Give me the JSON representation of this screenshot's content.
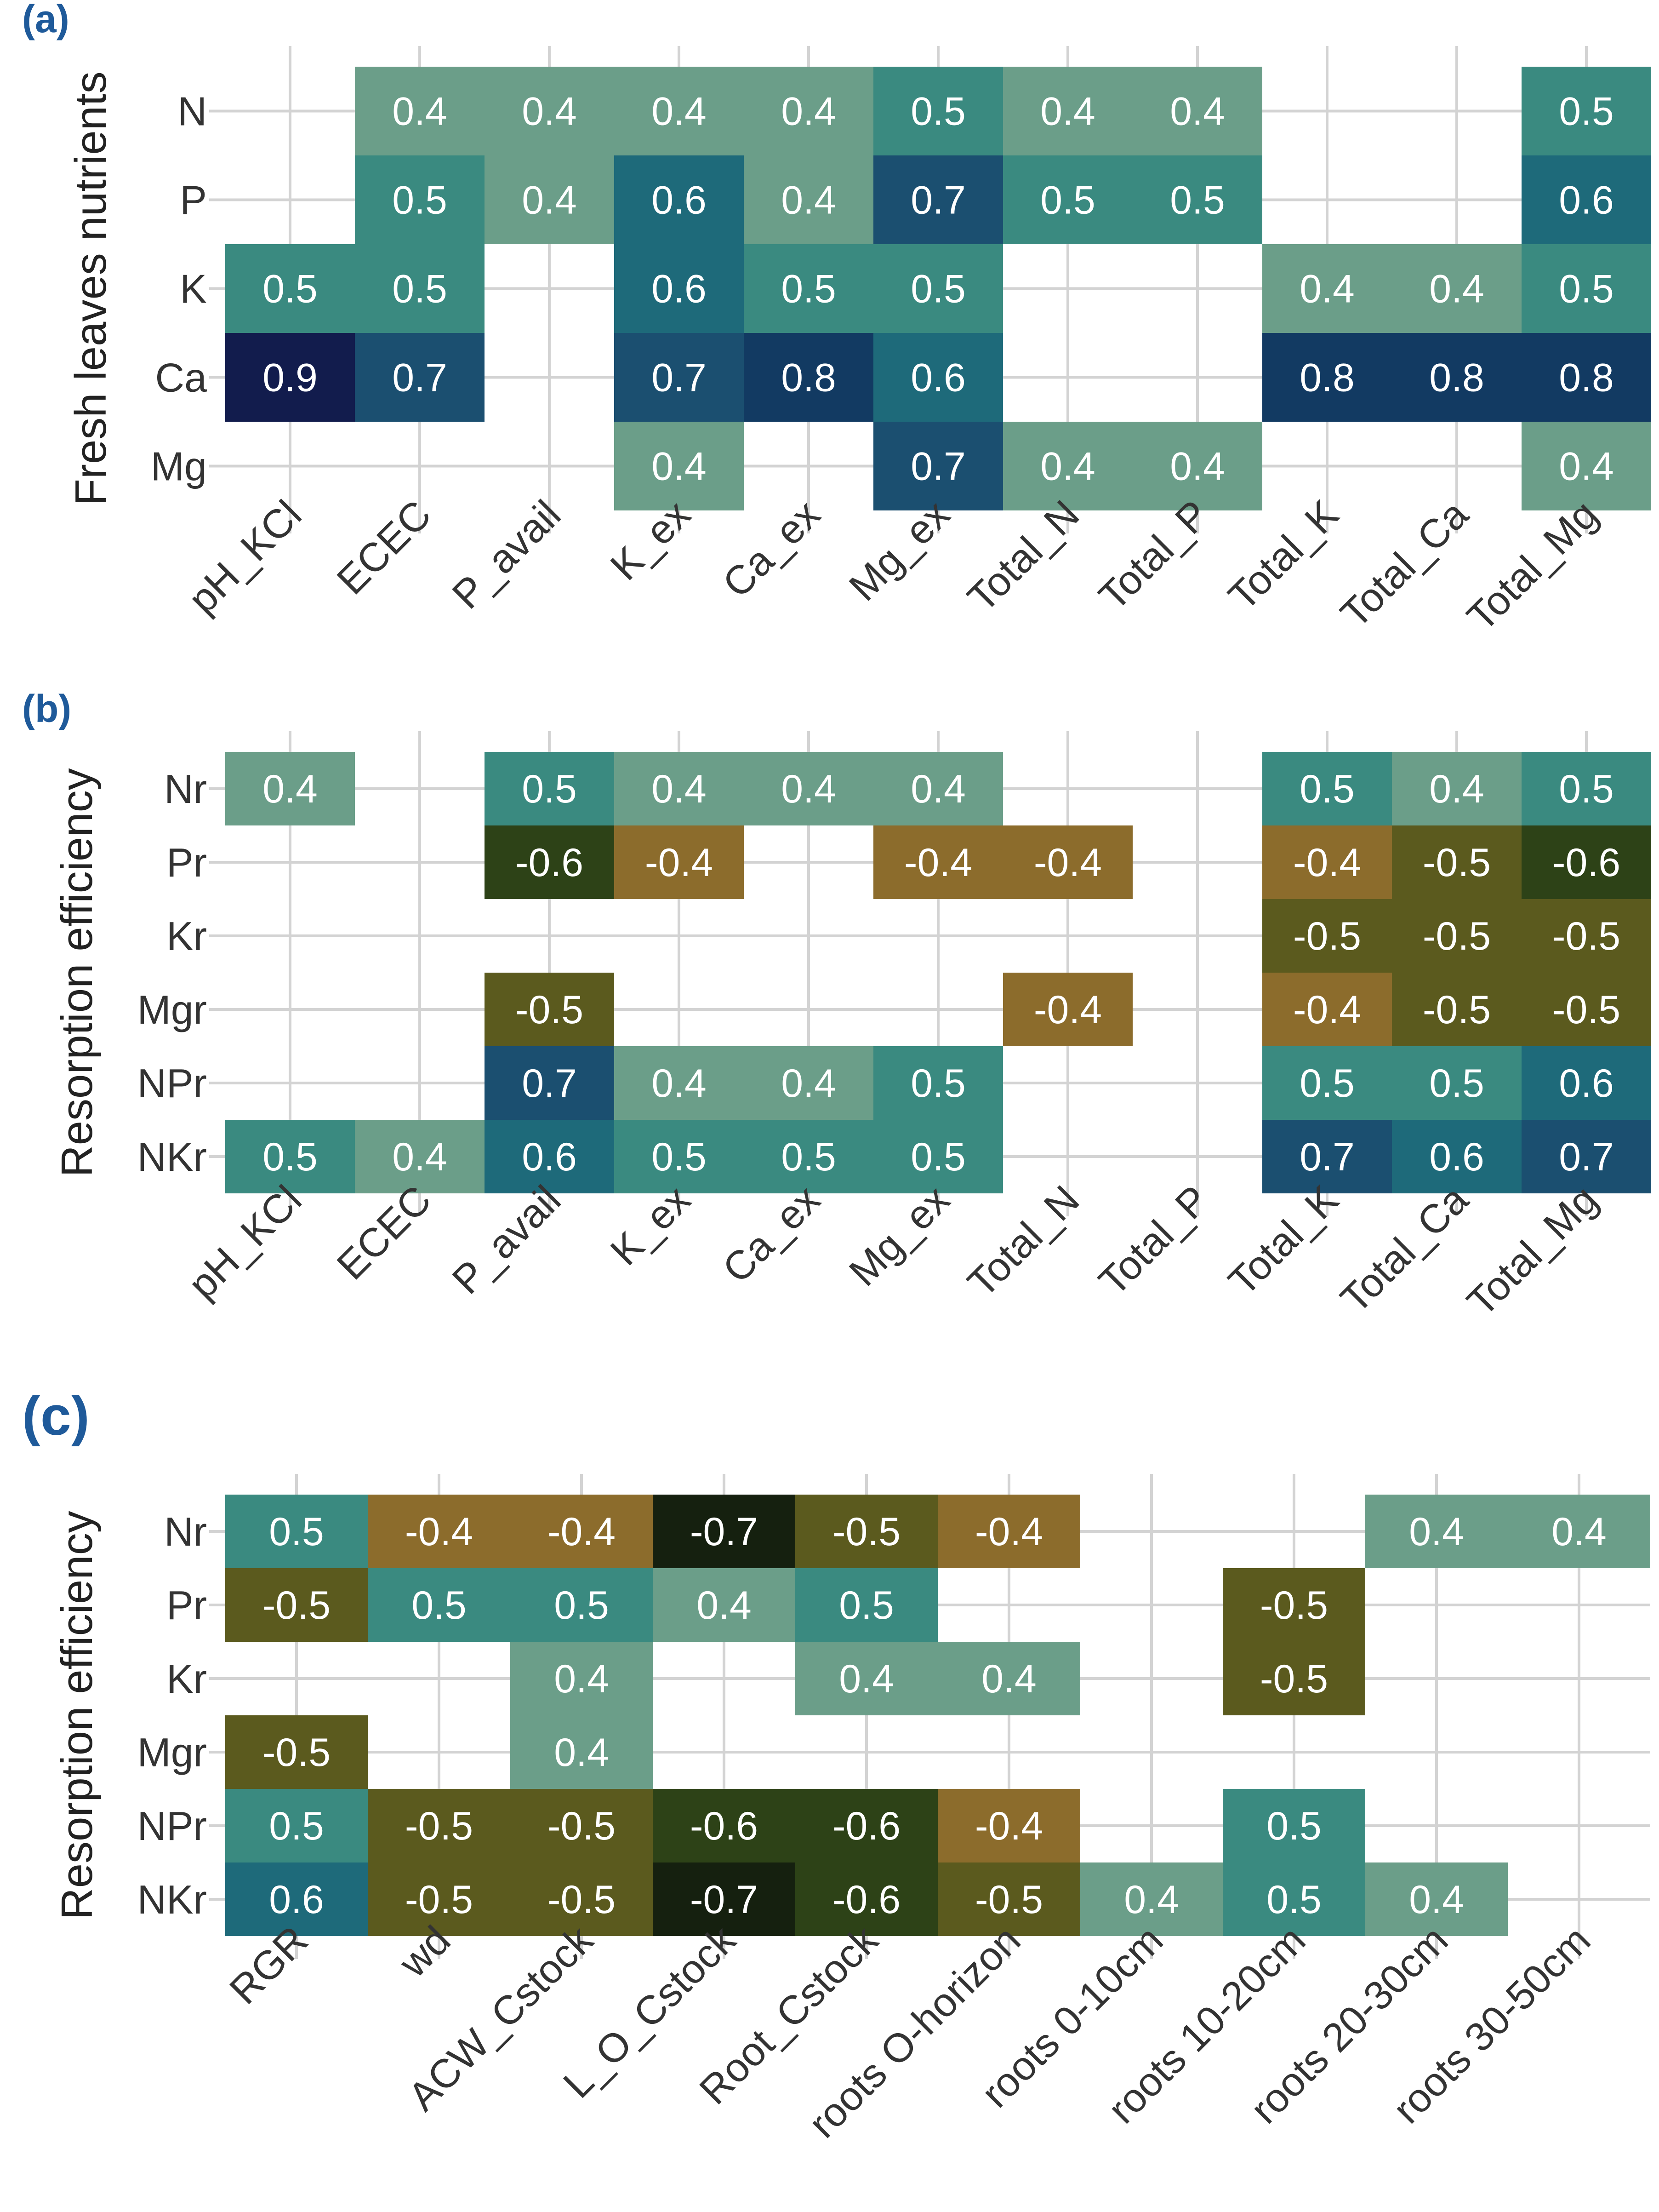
{
  "colors": {
    "pos_0.4": "#6b9e89",
    "pos_0.5": "#3a8a80",
    "pos_0.6": "#1e6a7a",
    "pos_0.7": "#1b4f70",
    "pos_0.8": "#123a62",
    "pos_0.9": "#121c4d",
    "neg_0.4": "#8c6c2c",
    "neg_0.5": "#5b5a1e",
    "neg_0.6": "#2d4217",
    "neg_0.7": "#15200f",
    "grid": "#d3d3d3",
    "panel_label": "#1f5a9a"
  },
  "chart_data": [
    {
      "type": "heatmap",
      "panel": "(a)",
      "ylabel": "Fresh leaves nutrients",
      "rows": [
        "N",
        "P",
        "K",
        "Ca",
        "Mg"
      ],
      "columns": [
        "pH_KCl",
        "ECEC",
        "P_avail",
        "K_ex",
        "Ca_ex",
        "Mg_ex",
        "Total_N",
        "Total_P",
        "Total_K",
        "Total_Ca",
        "Total_Mg"
      ],
      "values": [
        [
          null,
          0.4,
          0.4,
          0.4,
          0.4,
          0.5,
          0.4,
          0.4,
          null,
          null,
          0.5
        ],
        [
          null,
          0.5,
          0.4,
          0.6,
          0.4,
          0.7,
          0.5,
          0.5,
          null,
          null,
          0.6
        ],
        [
          0.5,
          0.5,
          null,
          0.6,
          0.5,
          0.5,
          null,
          null,
          0.4,
          0.4,
          0.5
        ],
        [
          0.9,
          0.7,
          null,
          0.7,
          0.8,
          0.6,
          null,
          null,
          0.8,
          0.8,
          0.8
        ],
        [
          null,
          null,
          null,
          0.4,
          null,
          0.7,
          0.4,
          0.4,
          null,
          null,
          0.4
        ]
      ]
    },
    {
      "type": "heatmap",
      "panel": "(b)",
      "ylabel": "Resorption efficiency",
      "rows": [
        "Nr",
        "Pr",
        "Kr",
        "Mgr",
        "NPr",
        "NKr"
      ],
      "columns": [
        "pH_KCl",
        "ECEC",
        "P_avail",
        "K_ex",
        "Ca_ex",
        "Mg_ex",
        "Total_N",
        "Total_P",
        "Total_K",
        "Total_Ca",
        "Total_Mg"
      ],
      "values": [
        [
          0.4,
          null,
          0.5,
          0.4,
          0.4,
          0.4,
          null,
          null,
          0.5,
          0.4,
          0.5
        ],
        [
          null,
          null,
          -0.6,
          -0.4,
          null,
          -0.4,
          -0.4,
          null,
          -0.4,
          -0.5,
          -0.6
        ],
        [
          null,
          null,
          null,
          null,
          null,
          null,
          null,
          null,
          -0.5,
          -0.5,
          -0.5
        ],
        [
          null,
          null,
          -0.5,
          null,
          null,
          null,
          -0.4,
          null,
          -0.4,
          -0.5,
          -0.5
        ],
        [
          null,
          null,
          0.7,
          0.4,
          0.4,
          0.5,
          null,
          null,
          0.5,
          0.5,
          0.6
        ],
        [
          0.5,
          0.4,
          0.6,
          0.5,
          0.5,
          0.5,
          null,
          null,
          0.7,
          0.6,
          0.7
        ]
      ]
    },
    {
      "type": "heatmap",
      "panel": "(c)",
      "ylabel": "Resorption efficiency",
      "rows": [
        "Nr",
        "Pr",
        "Kr",
        "Mgr",
        "NPr",
        "NKr"
      ],
      "columns": [
        "RGR",
        "wd",
        "ACW_Cstock",
        "L_O_Cstock",
        "Root_Cstock",
        "roots O-horizon",
        "roots 0-10cm",
        "roots 10-20cm",
        "roots 20-30cm",
        "roots 30-50cm"
      ],
      "values": [
        [
          0.5,
          -0.4,
          -0.4,
          -0.7,
          -0.5,
          -0.4,
          null,
          null,
          0.4,
          0.4
        ],
        [
          -0.5,
          0.5,
          0.5,
          0.4,
          0.5,
          null,
          null,
          -0.5,
          null,
          null
        ],
        [
          null,
          null,
          0.4,
          null,
          0.4,
          0.4,
          null,
          -0.5,
          null,
          null
        ],
        [
          -0.5,
          null,
          0.4,
          null,
          null,
          null,
          null,
          null,
          null,
          null
        ],
        [
          0.5,
          -0.5,
          -0.5,
          -0.6,
          -0.6,
          -0.4,
          null,
          0.5,
          null,
          null
        ],
        [
          0.6,
          -0.5,
          -0.5,
          -0.7,
          -0.6,
          -0.5,
          0.4,
          0.5,
          0.4,
          null
        ]
      ]
    }
  ]
}
